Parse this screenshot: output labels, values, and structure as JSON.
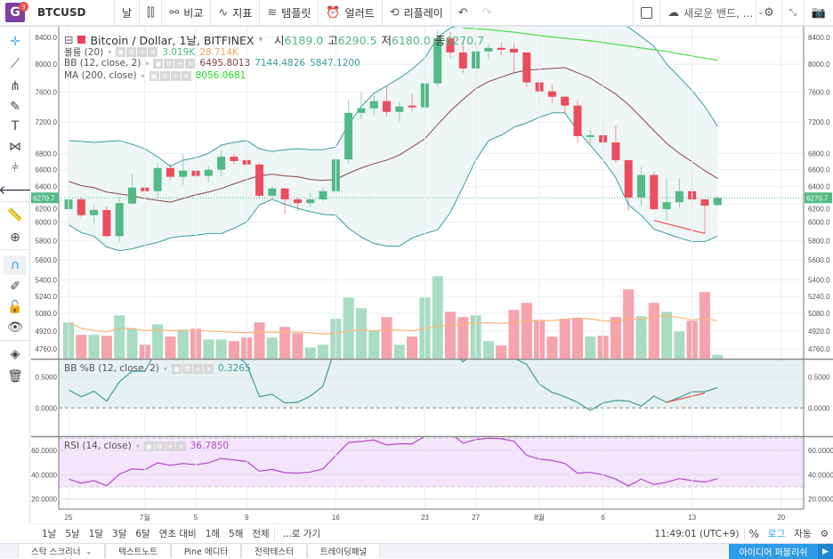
{
  "topbar": {
    "badge": "3",
    "logo_letter": "G",
    "symbol": "BTCUSD",
    "interval": "날",
    "compare": "비교",
    "indicators": "지표",
    "templates": "템플릿",
    "alert": "얼러트",
    "replay": "리플레이",
    "layout_name": "새로운 밴드, ..."
  },
  "legend": {
    "title": "Bitcoin / Dollar, 1날, BITFINEX",
    "o_label": "시",
    "o": "6189.0",
    "h_label": "고",
    "h": "6290.5",
    "l_label": "저",
    "l": "6180.0",
    "c_label": "종",
    "c": "6270.7",
    "volume_name": "볼륨 (20)",
    "volume_val": "3.019K",
    "volume_ma": "28.714K",
    "bb_name": "BB (12, close, 2)",
    "bb_mid": "6495.8013",
    "bb_upper": "7144.4826",
    "bb_lower": "5847.1200",
    "ma_name": "MA (200, close)",
    "ma_val": "8056.0681",
    "pctb_name": "BB %B (12, close, 2)",
    "pctb_val": "0.3265",
    "rsi_name": "RSI (14, close)",
    "rsi_val": "36.7850"
  },
  "colors": {
    "up": "#53b987",
    "down": "#eb4d5c",
    "vol_up": "#a8dcc3",
    "vol_down": "#f5a3ac",
    "bb_band": "#3c9d9d",
    "bb_mid": "#8b4747",
    "ma": "#4cdd4c",
    "vol_ma": "#ffb47a",
    "pctb": "#3c9d9d",
    "rsi": "#b448c8",
    "trend": "#f0504f",
    "accent": "#2e9be6"
  },
  "chart_data": {
    "type": "candlestick",
    "price_scale": "log",
    "price_ticks": [
      8400,
      8000,
      7600,
      7200,
      6800,
      6600,
      6400,
      6200,
      6000,
      5800,
      5600,
      5400,
      5240,
      5080,
      4920,
      4760
    ],
    "price_tick_labels": [
      "8400.0",
      "8000.0",
      "7600.0",
      "7200.0",
      "6800.0",
      "6600.0",
      "6400.0",
      "6200.0",
      "6000.0",
      "5800.0",
      "5600.0",
      "5400.0",
      "5240.0",
      "5080.0",
      "4920.0",
      "4760.0"
    ],
    "last_price_label": "6270.7",
    "last_price": 6270.7,
    "x_ticks": [
      {
        "index": 0,
        "label": "25"
      },
      {
        "index": 6,
        "label": "7월"
      },
      {
        "index": 10,
        "label": "5"
      },
      {
        "index": 14,
        "label": "9"
      },
      {
        "index": 21,
        "label": "16"
      },
      {
        "index": 28,
        "label": "23"
      },
      {
        "index": 32,
        "label": "27"
      },
      {
        "index": 37,
        "label": "8월"
      },
      {
        "index": 42,
        "label": "6"
      },
      {
        "index": 49,
        "label": "13"
      },
      {
        "index": 56,
        "label": "20"
      }
    ],
    "ohlc": [
      [
        6143,
        6347,
        6076,
        6253
      ],
      [
        6253,
        6274,
        6057,
        6076
      ],
      [
        6076,
        6190,
        5990,
        6133
      ],
      [
        6133,
        6171,
        5838,
        5848
      ],
      [
        5848,
        6284,
        5790,
        6211
      ],
      [
        6205,
        6547,
        6195,
        6389
      ],
      [
        6389,
        6442,
        6263,
        6347
      ],
      [
        6347,
        6684,
        6263,
        6621
      ],
      [
        6621,
        6674,
        6474,
        6516
      ],
      [
        6516,
        6789,
        6421,
        6589
      ],
      [
        6589,
        6695,
        6432,
        6526
      ],
      [
        6526,
        6642,
        6453,
        6600
      ],
      [
        6600,
        6834,
        6516,
        6758
      ],
      [
        6758,
        6800,
        6663,
        6705
      ],
      [
        6716,
        6811,
        6621,
        6663
      ],
      [
        6663,
        6684,
        6263,
        6295
      ],
      [
        6295,
        6411,
        6263,
        6379
      ],
      [
        6379,
        6379,
        6086,
        6253
      ],
      [
        6253,
        6274,
        6124,
        6211
      ],
      [
        6211,
        6326,
        6171,
        6253
      ],
      [
        6253,
        6389,
        6232,
        6347
      ],
      [
        6347,
        6747,
        6326,
        6726
      ],
      [
        6726,
        7491,
        6674,
        7321
      ],
      [
        7321,
        7600,
        7236,
        7382
      ],
      [
        7382,
        7552,
        7285,
        7479
      ],
      [
        7479,
        7688,
        7273,
        7333
      ],
      [
        7333,
        7467,
        7212,
        7406
      ],
      [
        7418,
        7576,
        7333,
        7394
      ],
      [
        7394,
        7825,
        7382,
        7725
      ],
      [
        7725,
        8507,
        7688,
        8387
      ],
      [
        8387,
        8493,
        8080,
        8173
      ],
      [
        8173,
        8320,
        7875,
        7938
      ],
      [
        7938,
        8293,
        7825,
        8187
      ],
      [
        8187,
        8307,
        8067,
        8240
      ],
      [
        8240,
        8320,
        8133,
        8213
      ],
      [
        8227,
        8307,
        7888,
        8173
      ],
      [
        8173,
        8173,
        7675,
        7738
      ],
      [
        7738,
        7750,
        7442,
        7613
      ],
      [
        7613,
        7713,
        7455,
        7539
      ],
      [
        7539,
        7539,
        7321,
        7418
      ],
      [
        7418,
        7491,
        6926,
        7017
      ],
      [
        7006,
        7097,
        6926,
        7028
      ],
      [
        7028,
        7154,
        6857,
        6937
      ],
      [
        6937,
        7154,
        6684,
        6716
      ],
      [
        6716,
        6716,
        6124,
        6274
      ],
      [
        6274,
        6632,
        6181,
        6537
      ],
      [
        6537,
        6579,
        6133,
        6143
      ],
      [
        6143,
        6495,
        6019,
        6221
      ],
      [
        6221,
        6495,
        6162,
        6347
      ],
      [
        6347,
        6558,
        6152,
        6253
      ],
      [
        6253,
        6253,
        5876,
        6181
      ],
      [
        6189,
        6290.5,
        6180,
        6270.7
      ]
    ],
    "volume_k": [
      27.5,
      18.1,
      18.1,
      17.4,
      32.8,
      22.8,
      10.7,
      26.1,
      16.8,
      22.1,
      22.8,
      14.7,
      14.7,
      13.4,
      16.1,
      27.5,
      16.1,
      24.1,
      19.4,
      8.7,
      10.7,
      30.2,
      46.2,
      38.2,
      21.4,
      31.5,
      10.7,
      16.8,
      46.2,
      62.3,
      35.5,
      31.5,
      32.8,
      13.4,
      10.1,
      36.9,
      42.2,
      29.5,
      16.8,
      30.2,
      30.8,
      16.8,
      17.4,
      31.5,
      52.3,
      32.2,
      42.2,
      35.5,
      20.8,
      28.8,
      50.3,
      3.019
    ],
    "bb_upper": [
      6960,
      6949,
      6937,
      6949,
      6960,
      6914,
      6857,
      6758,
      6642,
      6716,
      6747,
      6800,
      6903,
      6937,
      6960,
      6857,
      6823,
      6846,
      6857,
      6846,
      6846,
      6880,
      7166,
      7406,
      7588,
      7688,
      7800,
      7925,
      8093,
      8400,
      8547,
      8600,
      8700,
      8800,
      8900,
      8950,
      9000,
      9000,
      8980,
      8950,
      8900,
      8800,
      8700,
      8620,
      8560,
      8413,
      8267,
      8000,
      7813,
      7625,
      7406,
      7144.48
    ],
    "bb_mid": [
      6463,
      6411,
      6389,
      6337,
      6316,
      6295,
      6263,
      6242,
      6221,
      6263,
      6305,
      6337,
      6379,
      6432,
      6484,
      6526,
      6547,
      6526,
      6516,
      6484,
      6474,
      6484,
      6558,
      6621,
      6674,
      6716,
      6779,
      6880,
      6983,
      7166,
      7345,
      7503,
      7650,
      7750,
      7813,
      7875,
      7913,
      7925,
      7938,
      7950,
      7875,
      7800,
      7688,
      7576,
      7430,
      7261,
      7086,
      6926,
      6800,
      6695,
      6589,
      6495.8
    ],
    "bb_lower": [
      5971,
      5886,
      5848,
      5733,
      5695,
      5714,
      5752,
      5781,
      5829,
      5848,
      5857,
      5876,
      5876,
      5933,
      6000,
      6190,
      6253,
      6200,
      6152,
      6114,
      6086,
      6076,
      5933,
      5838,
      5771,
      5743,
      5743,
      5829,
      5876,
      5914,
      6105,
      6400,
      6716,
      6960,
      7029,
      7131,
      7189,
      7261,
      7321,
      7321,
      7086,
      6903,
      6716,
      6505,
      6190,
      6076,
      5924,
      5876,
      5829,
      5790,
      5790,
      5847.12
    ],
    "ma200": [
      null,
      null,
      null,
      null,
      null,
      null,
      null,
      null,
      null,
      null,
      null,
      null,
      null,
      null,
      null,
      null,
      null,
      null,
      null,
      null,
      null,
      null,
      null,
      null,
      null,
      null,
      null,
      null,
      null,
      null,
      null,
      8547,
      8533,
      8520,
      8500,
      8480,
      8453,
      8427,
      8407,
      8387,
      8367,
      8347,
      8320,
      8293,
      8267,
      8240,
      8213,
      8187,
      8153,
      8120,
      8087,
      8056.07
    ],
    "price_trendline": {
      "from": [
        46,
        6019
      ],
      "to": [
        50,
        5876
      ]
    },
    "pctb": {
      "ticks": [
        0.5,
        0.0
      ],
      "tick_labels": [
        "0.5000",
        "0.0000"
      ],
      "values": [
        0.29,
        0.18,
        0.27,
        0.11,
        0.42,
        0.59,
        0.59,
        0.95,
        0.85,
        0.78,
        0.8,
        0.82,
        0.95,
        0.88,
        0.7,
        0.18,
        0.22,
        0.08,
        0.09,
        0.19,
        0.35,
        1.0,
        1.1,
        1.0,
        0.95,
        0.9,
        0.95,
        0.9,
        1.05,
        1.15,
        0.95,
        0.74,
        0.9,
        0.85,
        0.85,
        0.8,
        0.7,
        0.38,
        0.25,
        0.18,
        0.09,
        -0.04,
        0.08,
        0.12,
        0.11,
        0.03,
        0.19,
        0.09,
        0.17,
        0.26,
        0.26,
        0.3265
      ],
      "trendline": {
        "from": [
          47,
          0.09
        ],
        "to": [
          50,
          0.24
        ]
      }
    },
    "rsi": {
      "ticks": [
        60,
        40,
        20
      ],
      "tick_labels": [
        "60.0000",
        "40.0000",
        "20.0000"
      ],
      "band": [
        30,
        70
      ],
      "values": [
        36.4,
        33.1,
        35.1,
        31,
        40.4,
        44.8,
        44.1,
        49.7,
        47.7,
        49.2,
        48.2,
        49.7,
        53.4,
        52.1,
        50.9,
        42.9,
        44.4,
        41.7,
        41.2,
        42.2,
        44.8,
        55.8,
        66.4,
        67.3,
        68.5,
        64.4,
        65.3,
        65.3,
        71.6,
        78,
        74,
        65.9,
        68.8,
        70,
        69.5,
        67.5,
        55.8,
        52.8,
        51.7,
        49.2,
        41.2,
        41.9,
        40,
        36.4,
        30.7,
        36.4,
        32,
        33.9,
        36.8,
        35.1,
        34,
        36.785
      ]
    }
  },
  "bottombar": {
    "ranges": [
      "1날",
      "5날",
      "1달",
      "3달",
      "6달",
      "연초 대비",
      "1해",
      "5해",
      "전체"
    ],
    "goto": "...로 가기",
    "time": "11:49:01 (UTC+9)",
    "percent": "%",
    "log": "로그",
    "auto": "자동"
  },
  "tabs": {
    "items": [
      "스탁 스크리너",
      "텍스트노트",
      "Pine 에디터",
      "전략테스터",
      "트레이딩패널"
    ],
    "publish": "아이디어 퍼블리쉬"
  }
}
